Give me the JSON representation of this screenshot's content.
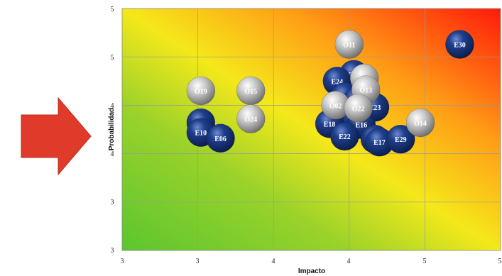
{
  "chart_data": {
    "type": "scatter",
    "xlabel": "Impacto",
    "ylabel": "Probabilidad",
    "x_tick_labels": [
      "3",
      "3",
      "4",
      "4",
      "5",
      "5"
    ],
    "y_tick_labels": [
      "3",
      "3",
      "4",
      "4",
      "5",
      "5"
    ],
    "xlim": [
      2.5,
      5.0
    ],
    "ylim": [
      2.5,
      5.0
    ],
    "background": "diagonal gradient: green (bottom-left) to yellow to orange to red (top-right)",
    "grid": true,
    "series": [
      {
        "color": "#0d2a6e",
        "style": "navy sphere",
        "points": [
          {
            "label": "E30",
            "x": 4.73,
            "y": 4.63
          },
          {
            "label": "E26",
            "x": 4.03,
            "y": 4.32
          },
          {
            "label": "E24",
            "x": 3.92,
            "y": 4.25
          },
          {
            "label": "E07",
            "x": 3.97,
            "y": 4.09
          },
          {
            "label": "O16",
            "x": 4.05,
            "y": 4.04
          },
          {
            "label": "E23",
            "x": 4.17,
            "y": 3.98
          },
          {
            "label": "E05",
            "x": 4.04,
            "y": 3.86
          },
          {
            "label": "E16",
            "x": 4.08,
            "y": 3.8
          },
          {
            "label": "E27",
            "x": 3.02,
            "y": 3.82
          },
          {
            "label": "E18",
            "x": 3.87,
            "y": 3.81
          },
          {
            "label": "E10",
            "x": 3.02,
            "y": 3.72
          },
          {
            "label": "E06",
            "x": 3.15,
            "y": 3.66
          },
          {
            "label": "E22",
            "x": 3.97,
            "y": 3.68
          },
          {
            "label": "E12",
            "x": 4.17,
            "y": 3.65
          },
          {
            "label": "E17",
            "x": 4.2,
            "y": 3.62
          },
          {
            "label": "E29",
            "x": 4.34,
            "y": 3.65
          }
        ]
      },
      {
        "color": "#a8a8a8",
        "style": "silver sphere",
        "points": [
          {
            "label": "O11",
            "x": 4.0,
            "y": 4.63
          },
          {
            "label": "O12",
            "x": 4.1,
            "y": 4.28
          },
          {
            "label": "O13",
            "x": 4.11,
            "y": 4.16
          },
          {
            "label": "O19",
            "x": 3.02,
            "y": 4.15
          },
          {
            "label": "O15",
            "x": 3.35,
            "y": 4.15
          },
          {
            "label": "O02",
            "x": 3.91,
            "y": 4.0
          },
          {
            "label": "O22",
            "x": 4.06,
            "y": 3.97
          },
          {
            "label": "O24",
            "x": 3.35,
            "y": 3.86
          },
          {
            "label": "O14",
            "x": 4.47,
            "y": 3.82
          }
        ]
      }
    ]
  }
}
